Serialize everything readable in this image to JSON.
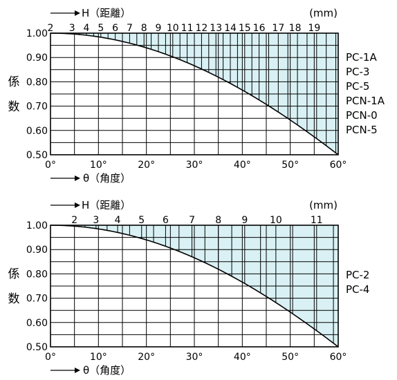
{
  "chart_data": [
    {
      "type": "area",
      "top_axis": {
        "label": "H（距離）",
        "unit": "(mm)",
        "ticks": [
          {
            "label": "2",
            "theta": 0
          },
          {
            "label": "3",
            "theta": 4.5
          },
          {
            "label": "4",
            "theta": 7.5
          },
          {
            "label": "5",
            "theta": 10.5
          },
          {
            "label": "6",
            "theta": 13.5
          },
          {
            "label": "7",
            "theta": 16.5
          },
          {
            "label": "8",
            "theta": 19.5
          },
          {
            "label": "9",
            "theta": 22.5
          },
          {
            "label": "10",
            "theta": 25.5
          },
          {
            "label": "11",
            "theta": 28.5
          },
          {
            "label": "12",
            "theta": 31.5
          },
          {
            "label": "13",
            "theta": 34.5
          },
          {
            "label": "14",
            "theta": 37.5
          },
          {
            "label": "15",
            "theta": 40.5
          },
          {
            "label": "16",
            "theta": 43.5
          },
          {
            "label": "17",
            "theta": 47.5
          },
          {
            "label": "18",
            "theta": 51
          },
          {
            "label": "19",
            "theta": 55
          }
        ],
        "line_thetas": [
          1.6,
          3.1,
          4.5,
          6,
          7.5,
          9,
          10.5,
          12,
          13.5,
          15,
          16.5,
          18,
          19.5,
          21,
          22.5,
          24,
          25.5,
          27,
          28.5,
          30,
          31.5,
          33,
          34.5,
          36,
          37.5,
          39,
          40.5,
          42,
          43.5,
          45.5,
          47.5,
          49.5,
          51.5,
          53.5,
          55.5,
          57.5,
          59.5
        ]
      },
      "bottom_axis": {
        "label": "θ（角度）",
        "ticks": [
          "0°",
          "10°",
          "20°",
          "30°",
          "40°",
          "50°",
          "60°"
        ],
        "range": [
          0,
          60
        ]
      },
      "ylabel": "係数",
      "ylim": [
        0.5,
        1.0
      ],
      "yticks": [
        "0.50",
        "0.60",
        "0.70",
        "0.80",
        "0.90",
        "1.00"
      ],
      "curve": {
        "function": "cos(theta)",
        "x": [
          0,
          10,
          20,
          30,
          40,
          50,
          60
        ],
        "y": [
          1.0,
          0.985,
          0.94,
          0.866,
          0.766,
          0.643,
          0.5
        ]
      },
      "fill_color": "#d9f1f4",
      "models": [
        "PC-1A",
        "PC-3",
        "PC-5",
        "PCN-1A",
        "PCN-0",
        "PCN-5"
      ]
    },
    {
      "type": "area",
      "top_axis": {
        "label": "H（距離）",
        "unit": "(mm)",
        "ticks": [
          {
            "label": "2",
            "theta": 5
          },
          {
            "label": "3",
            "theta": 9.5
          },
          {
            "label": "4",
            "theta": 14
          },
          {
            "label": "5",
            "theta": 19
          },
          {
            "label": "6",
            "theta": 24
          },
          {
            "label": "7",
            "theta": 29.5
          },
          {
            "label": "8",
            "theta": 35
          },
          {
            "label": "9",
            "theta": 40.5
          },
          {
            "label": "10",
            "theta": 47
          },
          {
            "label": "11",
            "theta": 55.5
          }
        ],
        "line_thetas": [
          5,
          7.2,
          9.5,
          11.8,
          14,
          16.5,
          19,
          21.5,
          24,
          26.8,
          29.5,
          32.2,
          35,
          37.8,
          40.5,
          43.8,
          47,
          50.5,
          55.5,
          59
        ]
      },
      "bottom_axis": {
        "label": "θ（角度）",
        "ticks": [
          "0°",
          "10°",
          "20°",
          "30°",
          "40°",
          "50°",
          "60°"
        ],
        "range": [
          0,
          60
        ]
      },
      "ylabel": "係数",
      "ylim": [
        0.5,
        1.0
      ],
      "yticks": [
        "0.50",
        "0.60",
        "0.70",
        "0.80",
        "0.90",
        "1.00"
      ],
      "curve": {
        "function": "cos(theta)",
        "x": [
          0,
          10,
          20,
          30,
          40,
          50,
          60
        ],
        "y": [
          1.0,
          0.985,
          0.94,
          0.866,
          0.766,
          0.643,
          0.5
        ]
      },
      "fill_color": "#d9f1f4",
      "models": [
        "PC-2",
        "PC-4"
      ]
    }
  ]
}
